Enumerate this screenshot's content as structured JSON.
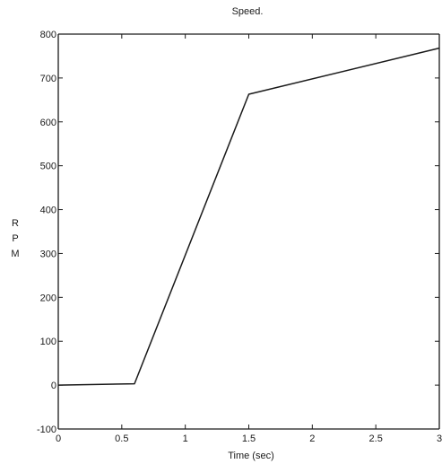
{
  "chart_data": {
    "type": "line",
    "title": "Speed.",
    "xlabel": "Time (sec)",
    "ylabel": [
      "R",
      "P",
      "M"
    ],
    "xlim": [
      0,
      3
    ],
    "ylim": [
      -100,
      800
    ],
    "xticks": [
      0,
      0.5,
      1,
      1.5,
      2,
      2.5,
      3
    ],
    "xtick_labels": [
      "0",
      "0.5",
      "1",
      "1.5",
      "2",
      "2.5",
      "3"
    ],
    "yticks": [
      -100,
      0,
      100,
      200,
      300,
      400,
      500,
      600,
      700,
      800
    ],
    "ytick_labels": [
      "-100",
      "0",
      "100",
      "200",
      "300",
      "400",
      "500",
      "600",
      "700",
      "800"
    ],
    "grid": false,
    "series": [
      {
        "x": [
          0,
          0.6,
          1.5,
          3.0
        ],
        "y": [
          0,
          3,
          663,
          768
        ],
        "color": "#1a1a1a"
      }
    ]
  }
}
